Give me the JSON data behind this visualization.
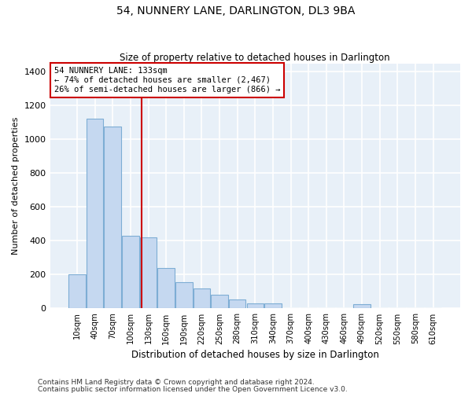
{
  "title": "54, NUNNERY LANE, DARLINGTON, DL3 9BA",
  "subtitle": "Size of property relative to detached houses in Darlington",
  "xlabel": "Distribution of detached houses by size in Darlington",
  "ylabel": "Number of detached properties",
  "footnote1": "Contains HM Land Registry data © Crown copyright and database right 2024.",
  "footnote2": "Contains public sector information licensed under the Open Government Licence v3.0.",
  "bar_color": "#c5d8f0",
  "bar_edge_color": "#7dadd4",
  "background_color": "#e8f0f8",
  "grid_color": "#ffffff",
  "annotation_box_color": "#cc0000",
  "marker_line_color": "#cc0000",
  "categories": [
    "10sqm",
    "40sqm",
    "70sqm",
    "100sqm",
    "130sqm",
    "160sqm",
    "190sqm",
    "220sqm",
    "250sqm",
    "280sqm",
    "310sqm",
    "340sqm",
    "370sqm",
    "400sqm",
    "430sqm",
    "460sqm",
    "490sqm",
    "520sqm",
    "550sqm",
    "580sqm",
    "610sqm"
  ],
  "values": [
    200,
    1125,
    1075,
    430,
    420,
    240,
    155,
    120,
    80,
    55,
    30,
    30,
    0,
    0,
    0,
    0,
    25,
    0,
    0,
    0,
    0
  ],
  "ylim": [
    0,
    1450
  ],
  "yticks": [
    0,
    200,
    400,
    600,
    800,
    1000,
    1200,
    1400
  ],
  "annotation_text": "54 NUNNERY LANE: 133sqm\n← 74% of detached houses are smaller (2,467)\n26% of semi-detached houses are larger (866) →"
}
